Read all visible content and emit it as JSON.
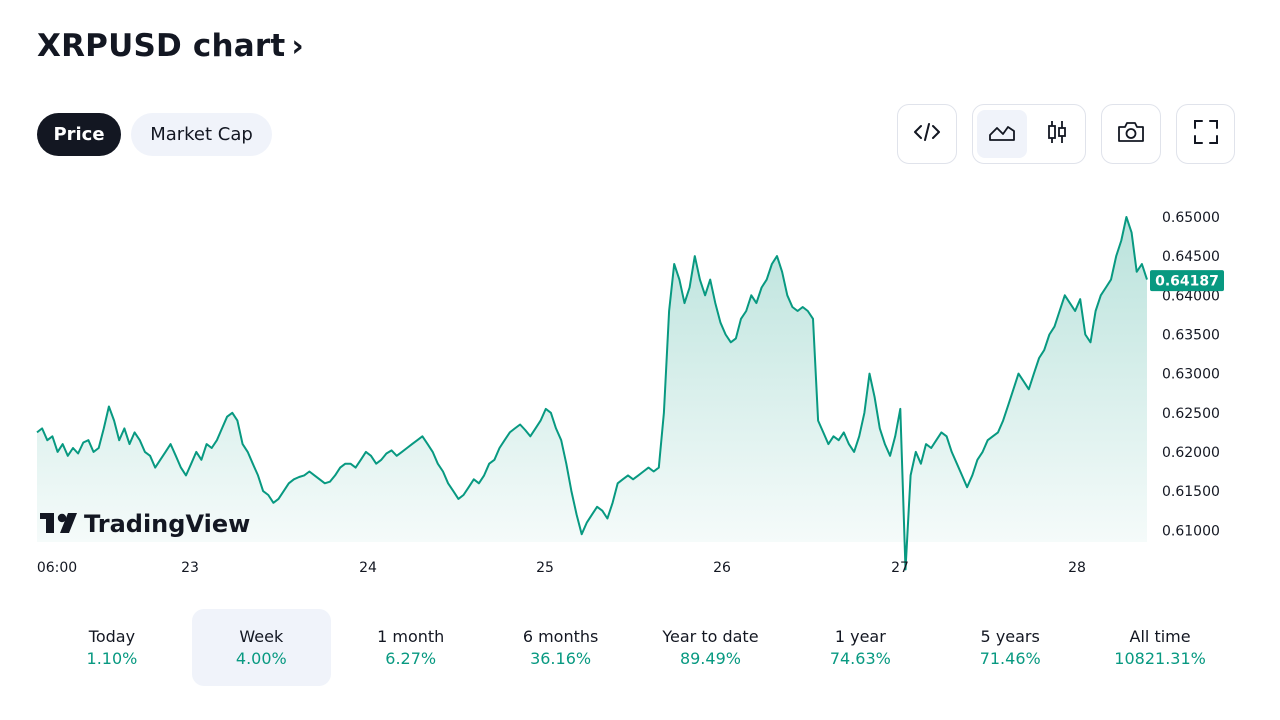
{
  "header": {
    "title": "XRPUSD chart",
    "chevron": "›"
  },
  "tabs": [
    {
      "label": "Price",
      "active": true
    },
    {
      "label": "Market Cap",
      "active": false
    }
  ],
  "toolbar": {
    "embed_icon": "code-icon",
    "area_icon": "area-chart-icon",
    "candle_icon": "candlestick-icon",
    "snapshot_icon": "camera-icon",
    "fullscreen_icon": "fullscreen-icon"
  },
  "brand": {
    "logo_text": "TradingView"
  },
  "colors": {
    "accent": "#089981",
    "line": "#089981",
    "dark": "#131722",
    "pill_bg": "#f0f3fa"
  },
  "chart_data": {
    "type": "area",
    "x_tick_labels": [
      "06:00",
      "23",
      "24",
      "25",
      "26",
      "27",
      "28"
    ],
    "y_tick_labels": [
      "0.65000",
      "0.64500",
      "0.64000",
      "0.63500",
      "0.63000",
      "0.62500",
      "0.62000",
      "0.61500",
      "0.61000"
    ],
    "ylim": [
      0.6085,
      0.6537
    ],
    "current_price": 0.64187,
    "current_price_label": "0.64187",
    "grid": false,
    "series": [
      {
        "values": [
          0.6225,
          0.623,
          0.6215,
          0.622,
          0.62,
          0.621,
          0.6195,
          0.6205,
          0.6198,
          0.6212,
          0.6215,
          0.62,
          0.6205,
          0.623,
          0.6258,
          0.624,
          0.6215,
          0.623,
          0.621,
          0.6225,
          0.6215,
          0.62,
          0.6195,
          0.618,
          0.619,
          0.62,
          0.621,
          0.6195,
          0.618,
          0.617,
          0.6185,
          0.62,
          0.619,
          0.621,
          0.6205,
          0.6215,
          0.623,
          0.6245,
          0.625,
          0.624,
          0.621,
          0.62,
          0.6185,
          0.617,
          0.615,
          0.6145,
          0.6135,
          0.614,
          0.615,
          0.616,
          0.6165,
          0.6168,
          0.617,
          0.6175,
          0.617,
          0.6165,
          0.616,
          0.6162,
          0.617,
          0.618,
          0.6185,
          0.6185,
          0.618,
          0.619,
          0.62,
          0.6195,
          0.6185,
          0.619,
          0.6198,
          0.6202,
          0.6195,
          0.62,
          0.6205,
          0.621,
          0.6215,
          0.622,
          0.621,
          0.62,
          0.6185,
          0.6175,
          0.616,
          0.615,
          0.614,
          0.6145,
          0.6155,
          0.6165,
          0.616,
          0.617,
          0.6185,
          0.619,
          0.6205,
          0.6215,
          0.6225,
          0.623,
          0.6235,
          0.6228,
          0.622,
          0.623,
          0.624,
          0.6255,
          0.625,
          0.623,
          0.6215,
          0.6185,
          0.615,
          0.612,
          0.6095,
          0.611,
          0.612,
          0.613,
          0.6125,
          0.6115,
          0.6135,
          0.616,
          0.6165,
          0.617,
          0.6165,
          0.617,
          0.6175,
          0.618,
          0.6175,
          0.618,
          0.625,
          0.638,
          0.644,
          0.642,
          0.639,
          0.641,
          0.645,
          0.642,
          0.64,
          0.642,
          0.639,
          0.6365,
          0.635,
          0.634,
          0.6345,
          0.637,
          0.638,
          0.64,
          0.639,
          0.641,
          0.642,
          0.644,
          0.645,
          0.643,
          0.64,
          0.6385,
          0.638,
          0.6385,
          0.638,
          0.637,
          0.624,
          0.6225,
          0.621,
          0.622,
          0.6215,
          0.6225,
          0.621,
          0.62,
          0.622,
          0.625,
          0.63,
          0.627,
          0.623,
          0.621,
          0.6195,
          0.622,
          0.6255,
          0.605,
          0.617,
          0.62,
          0.6185,
          0.621,
          0.6205,
          0.6215,
          0.6225,
          0.622,
          0.62,
          0.6185,
          0.617,
          0.6155,
          0.617,
          0.619,
          0.62,
          0.6215,
          0.622,
          0.6225,
          0.624,
          0.626,
          0.628,
          0.63,
          0.629,
          0.628,
          0.63,
          0.632,
          0.633,
          0.635,
          0.636,
          0.638,
          0.64,
          0.639,
          0.638,
          0.6395,
          0.635,
          0.634,
          0.638,
          0.64,
          0.641,
          0.642,
          0.645,
          0.647,
          0.65,
          0.648,
          0.643,
          0.644,
          0.642
        ]
      }
    ]
  },
  "periods": [
    {
      "label": "Today",
      "value": "1.10%",
      "selected": false
    },
    {
      "label": "Week",
      "value": "4.00%",
      "selected": true
    },
    {
      "label": "1 month",
      "value": "6.27%",
      "selected": false
    },
    {
      "label": "6 months",
      "value": "36.16%",
      "selected": false
    },
    {
      "label": "Year to date",
      "value": "89.49%",
      "selected": false
    },
    {
      "label": "1 year",
      "value": "74.63%",
      "selected": false
    },
    {
      "label": "5 years",
      "value": "71.46%",
      "selected": false
    },
    {
      "label": "All time",
      "value": "10821.31%",
      "selected": false
    }
  ]
}
